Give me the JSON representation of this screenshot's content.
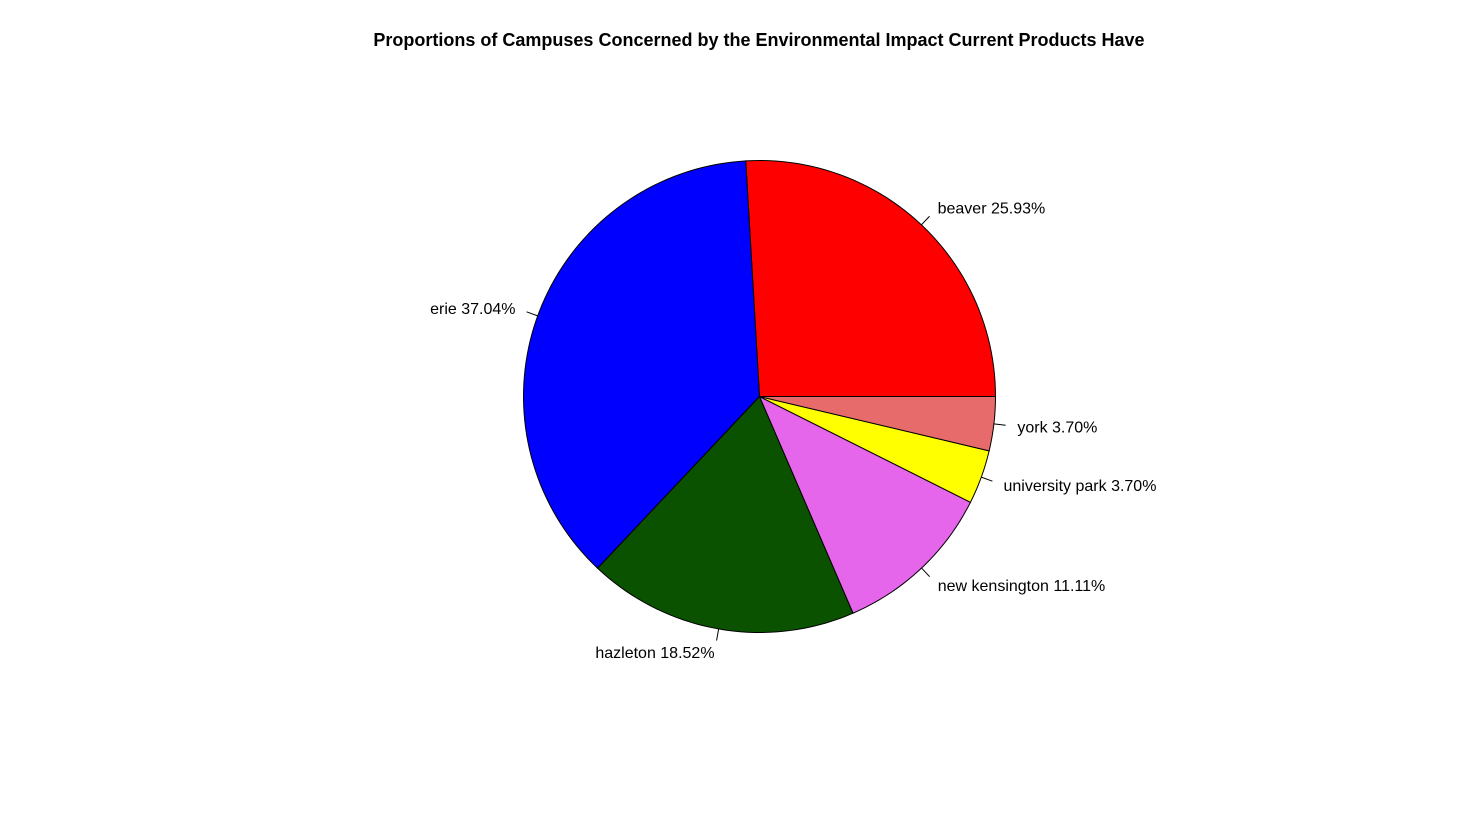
{
  "chart_data": {
    "type": "pie",
    "title": "Proportions of Campuses Concerned by the Environmental Impact Current Products Have",
    "start": "counterclockwise from 3 o'clock",
    "slices": [
      {
        "name": "beaver",
        "percent": 25.93,
        "label": "beaver 25.93%",
        "color": "#ff0000"
      },
      {
        "name": "erie",
        "percent": 37.04,
        "label": "erie 37.04%",
        "color": "#0000ff"
      },
      {
        "name": "hazleton",
        "percent": 18.52,
        "label": "hazleton 18.52%",
        "color": "#0a5200"
      },
      {
        "name": "new kensington",
        "percent": 11.11,
        "label": "new kensington 11.11%",
        "color": "#e566ea"
      },
      {
        "name": "university park",
        "percent": 3.7,
        "label": "university park 3.70%",
        "color": "#ffff00"
      },
      {
        "name": "york",
        "percent": 3.7,
        "label": "york 3.70%",
        "color": "#e86b6b"
      }
    ]
  }
}
